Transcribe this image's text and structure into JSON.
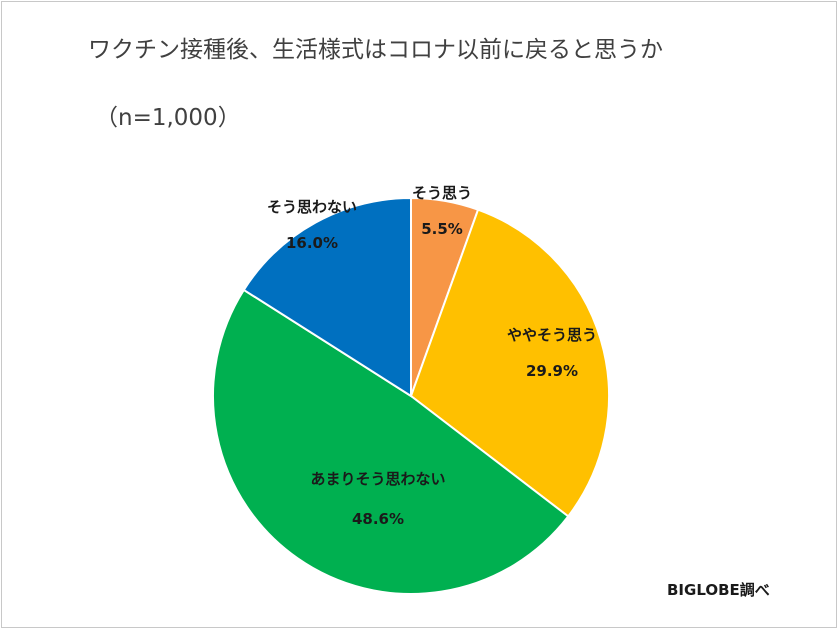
{
  "chart_data": {
    "type": "pie",
    "title": "ワクチン接種後、生活様式はコロナ以前に戻ると思うか",
    "subtitle": "（n=1,000）",
    "source": "BIGLOBE調べ",
    "start_angle_deg": 0,
    "direction": "clockwise",
    "slices": [
      {
        "label": "そう思う",
        "value": 5.5,
        "value_label": "5.5%",
        "color": "#f79646"
      },
      {
        "label": "ややそう思う",
        "value": 29.9,
        "value_label": "29.9%",
        "color": "#ffc000"
      },
      {
        "label": "あまりそう思わない",
        "value": 48.6,
        "value_label": "48.6%",
        "color": "#00b050"
      },
      {
        "label": "そう思わない",
        "value": 16.0,
        "value_label": "16.0%",
        "color": "#0070c0"
      }
    ]
  }
}
